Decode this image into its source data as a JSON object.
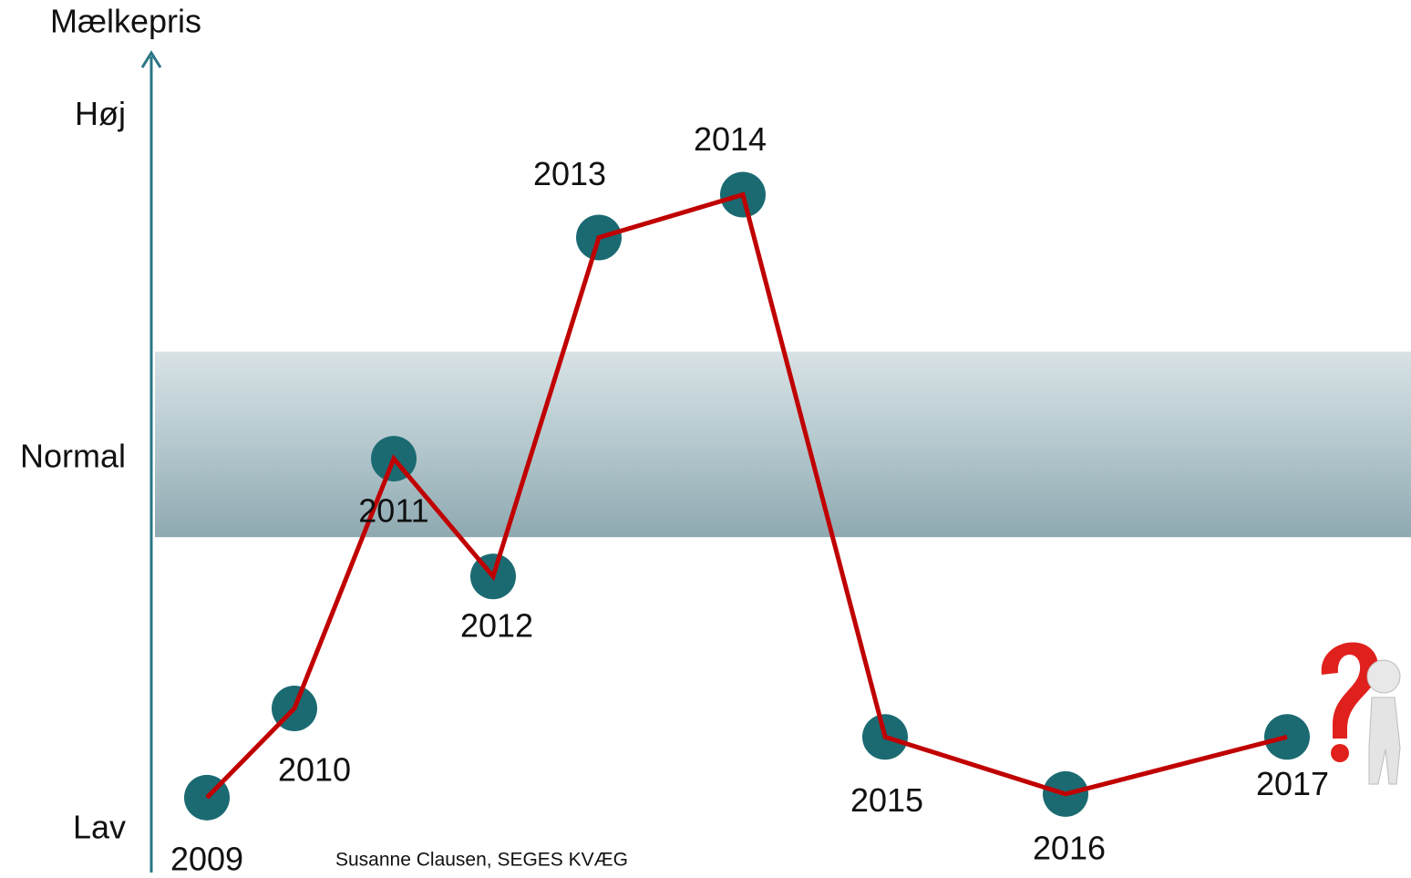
{
  "chart_data": {
    "type": "line",
    "y_label": "Mælkepris",
    "categories": [
      "2009",
      "2010",
      "2011",
      "2012",
      "2013",
      "2014",
      "2015",
      "2016",
      "2017"
    ],
    "values": [
      4.5,
      17,
      52,
      35.5,
      83,
      89,
      13,
      5,
      13
    ],
    "line_color": "#c00000",
    "marker_color": "#1b6a72",
    "ylim": [
      -6,
      109
    ],
    "yticks": [
      {
        "value": 0,
        "label": "Lav"
      },
      {
        "value": 52,
        "label": "Normal"
      },
      {
        "value": 100,
        "label": "Høj"
      }
    ],
    "normal_band": [
      41,
      67
    ],
    "source": "Susanne Clausen, SEGES KVÆG"
  }
}
